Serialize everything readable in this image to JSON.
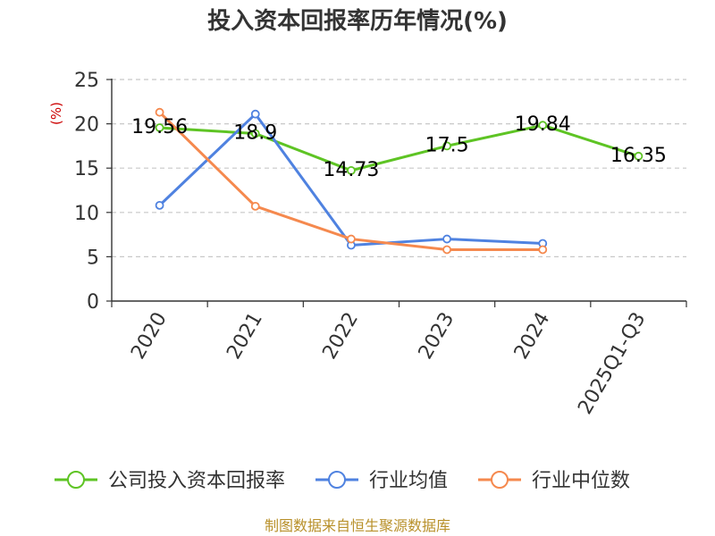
{
  "chart_data": {
    "type": "line",
    "title": "投入资本回报率历年情况(%)",
    "ylabel": "(%)",
    "categories": [
      "2020",
      "2021",
      "2022",
      "2023",
      "2024",
      "2025Q1-Q3"
    ],
    "ylim": [
      0,
      25
    ],
    "yticks": [
      0,
      5,
      10,
      15,
      20,
      25
    ],
    "grid": "horizontal-dashed",
    "legend_position": "bottom",
    "series": [
      {
        "name": "公司投入资本回报率",
        "color": "#5ec424",
        "values": [
          19.56,
          18.9,
          14.73,
          17.5,
          19.84,
          16.35
        ],
        "labels": [
          "19.56",
          "18.9",
          "14.73",
          "17.5",
          "19.84",
          "16.35"
        ]
      },
      {
        "name": "行业均值",
        "color": "#4f82e0",
        "values": [
          10.8,
          21.1,
          6.3,
          7.0,
          6.5,
          null
        ]
      },
      {
        "name": "行业中位数",
        "color": "#f5894e",
        "values": [
          21.3,
          10.7,
          7.0,
          5.8,
          5.8,
          null
        ]
      }
    ]
  },
  "source": "制图数据来自恒生聚源数据库"
}
